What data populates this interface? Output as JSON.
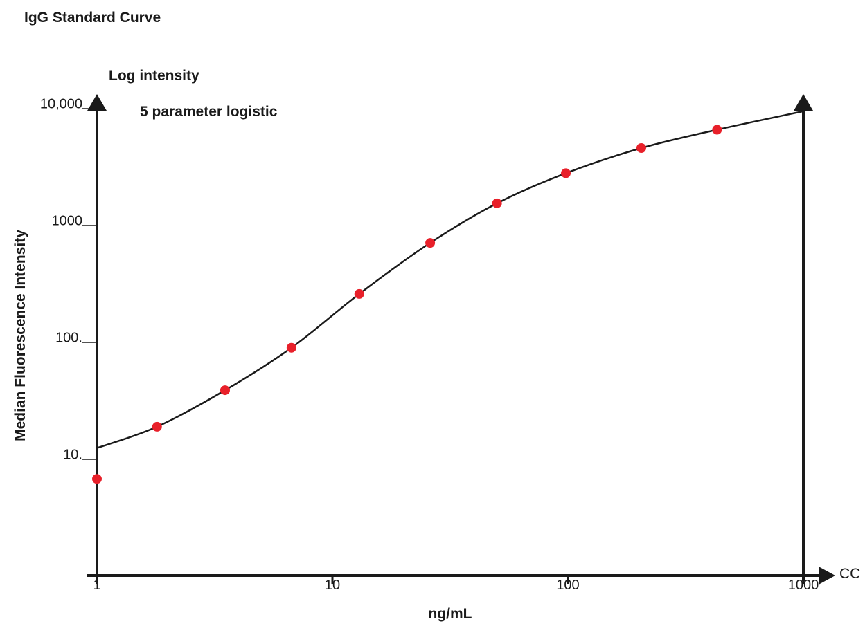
{
  "chart_data": {
    "type": "scatter",
    "title": "IgG Standard Curve",
    "annotations": [
      "Log intensity",
      "5 parameter logistic"
    ],
    "xlabel": "ng/mL",
    "ylabel": "Median Fluorescence Intensity",
    "x_extra_label": "CC",
    "x_scale": "log",
    "y_scale": "log",
    "xlim": [
      1,
      1000
    ],
    "ylim": [
      1,
      10000
    ],
    "x_ticks": [
      {
        "value": 1,
        "label": "1"
      },
      {
        "value": 10,
        "label": "10"
      },
      {
        "value": 100,
        "label": "100"
      },
      {
        "value": 1000,
        "label": "1000"
      }
    ],
    "y_ticks": [
      {
        "value": 10,
        "label": "10."
      },
      {
        "value": 100,
        "label": "100."
      },
      {
        "value": 1000,
        "label": "1000"
      },
      {
        "value": 10000,
        "label": "10,000"
      }
    ],
    "grid": false,
    "series": [
      {
        "points": [
          {
            "x": 1.0,
            "y": 6.8
          },
          {
            "x": 1.8,
            "y": 19
          },
          {
            "x": 3.5,
            "y": 39
          },
          {
            "x": 6.7,
            "y": 90
          },
          {
            "x": 13,
            "y": 260
          },
          {
            "x": 26,
            "y": 710
          },
          {
            "x": 50,
            "y": 1550
          },
          {
            "x": 98,
            "y": 2800
          },
          {
            "x": 205,
            "y": 4600
          },
          {
            "x": 430,
            "y": 6600
          }
        ],
        "color": "#e8202a"
      }
    ],
    "fit_curve": {
      "model": "5 parameter logistic",
      "points": [
        {
          "x": 1,
          "y": 12.5
        },
        {
          "x": 1.8,
          "y": 19
        },
        {
          "x": 3.5,
          "y": 39
        },
        {
          "x": 6.7,
          "y": 90
        },
        {
          "x": 13,
          "y": 260
        },
        {
          "x": 26,
          "y": 710
        },
        {
          "x": 50,
          "y": 1550
        },
        {
          "x": 98,
          "y": 2800
        },
        {
          "x": 205,
          "y": 4600
        },
        {
          "x": 430,
          "y": 6600
        },
        {
          "x": 1000,
          "y": 9500
        }
      ],
      "color": "#1a1a1a"
    },
    "axis_color": "#1a1a1a"
  }
}
